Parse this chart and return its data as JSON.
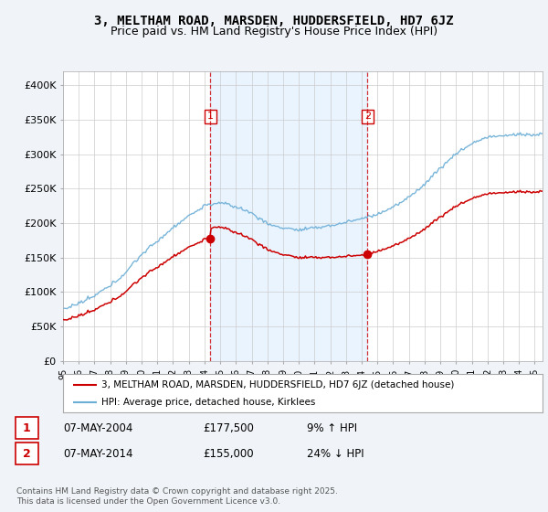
{
  "title": "3, MELTHAM ROAD, MARSDEN, HUDDERSFIELD, HD7 6JZ",
  "subtitle": "Price paid vs. HM Land Registry's House Price Index (HPI)",
  "ylim": [
    0,
    420000
  ],
  "yticks": [
    0,
    50000,
    100000,
    150000,
    200000,
    250000,
    300000,
    350000,
    400000
  ],
  "ytick_labels": [
    "£0",
    "£50K",
    "£100K",
    "£150K",
    "£200K",
    "£250K",
    "£300K",
    "£350K",
    "£400K"
  ],
  "background_color": "#f0f4f8",
  "plot_bg_color": "#ffffff",
  "grid_color": "#cccccc",
  "hpi_color": "#6baed6",
  "hpi_fill_color": "#ddeeff",
  "price_color": "#cc0000",
  "vline_color": "#cc0000",
  "shade_color": "#ddeeff",
  "sale1_year": 2004.37,
  "sale1_price": 177500,
  "sale2_year": 2014.37,
  "sale2_price": 155000,
  "sale1_date_str": "07-MAY-2004",
  "sale1_pct": "9% ↑ HPI",
  "sale2_date_str": "07-MAY-2014",
  "sale2_pct": "24% ↓ HPI",
  "legend_line1": "3, MELTHAM ROAD, MARSDEN, HUDDERSFIELD, HD7 6JZ (detached house)",
  "legend_line2": "HPI: Average price, detached house, Kirklees",
  "footnote": "Contains HM Land Registry data © Crown copyright and database right 2025.\nThis data is licensed under the Open Government Licence v3.0.",
  "title_fontsize": 10,
  "subtitle_fontsize": 9
}
